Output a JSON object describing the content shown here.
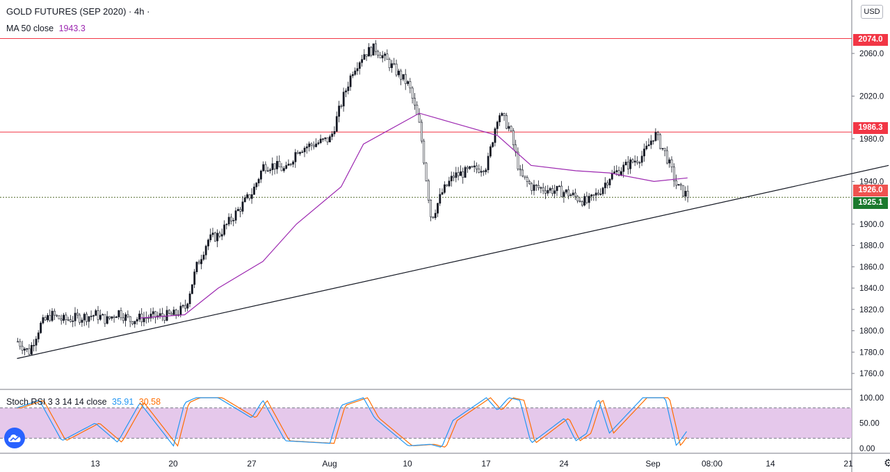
{
  "header": {
    "symbol": "GOLD FUTURES (SEP 2020)",
    "interval": "4h",
    "currency": "USD"
  },
  "ma": {
    "label": "MA 50 close",
    "value": "1943.3",
    "color": "#9c27b0"
  },
  "stoch": {
    "label": "Stoch RSI 3 3 14 14 close",
    "k": "35.91",
    "d": "30.58",
    "k_color": "#2196f3",
    "d_color": "#ff6d00"
  },
  "price_tags": {
    "resistance_high": {
      "text": "2074.0",
      "color": "#f23645"
    },
    "resistance_mid": {
      "text": "1986.3",
      "color": "#f23645"
    },
    "last_close": {
      "text": "1926.0",
      "color": "#ef5350"
    },
    "support": {
      "text": "1925.1",
      "color": "#1b7a2e"
    }
  },
  "chart_data": {
    "type": "candlestick",
    "price_axis_ticks": [
      "2060.0",
      "2020.0",
      "1980.0",
      "1940.0",
      "1900.0",
      "1880.0",
      "1860.0",
      "1840.0",
      "1820.0",
      "1800.0",
      "1780.0",
      "1760.0"
    ],
    "time_axis_ticks": [
      "13",
      "20",
      "27",
      "Aug",
      "10",
      "17",
      "24",
      "Sep",
      "08:00",
      "14",
      "21"
    ],
    "rsi_axis_ticks": [
      "100.00",
      "50.00",
      "0.00"
    ],
    "ylim": [
      1745,
      2090
    ],
    "rsi_ylim": [
      -5,
      110
    ],
    "rsi_band": [
      20,
      80
    ],
    "horizontal_levels": [
      {
        "name": "resistance-2074",
        "value": 2074.0,
        "color": "#f23645"
      },
      {
        "name": "resistance-1986",
        "value": 1986.3,
        "color": "#f23645"
      },
      {
        "name": "support-1925",
        "value": 1925.1,
        "color": "#556b2f",
        "dotted": true
      }
    ],
    "trendline": {
      "from": {
        "date": "Jul 6",
        "value": 1774
      },
      "to": {
        "date": "Sep 22",
        "value": 1955
      }
    },
    "price_anchors": [
      [
        "Jul 6",
        1790
      ],
      [
        "Jul 7",
        1780
      ],
      [
        "Jul 8",
        1805
      ],
      [
        "Jul 9",
        1815
      ],
      [
        "Jul 10",
        1810
      ],
      [
        "Jul 13",
        1815
      ],
      [
        "Jul 14",
        1810
      ],
      [
        "Jul 15",
        1818
      ],
      [
        "Jul 16",
        1810
      ],
      [
        "Jul 17",
        1812
      ],
      [
        "Jul 20",
        1815
      ],
      [
        "Jul 21",
        1822
      ],
      [
        "Jul 22",
        1860
      ],
      [
        "Jul 23",
        1885
      ],
      [
        "Jul 24",
        1890
      ],
      [
        "Jul 27",
        1930
      ],
      [
        "Jul 28",
        1955
      ],
      [
        "Jul 29",
        1955
      ],
      [
        "Jul 30",
        1950
      ],
      [
        "Jul 31",
        1970
      ],
      [
        "Aug 3",
        1980
      ],
      [
        "Aug 4",
        2015
      ],
      [
        "Aug 5",
        2045
      ],
      [
        "Aug 6",
        2060
      ],
      [
        "Aug 7",
        2065
      ],
      [
        "Aug 10",
        2030
      ],
      [
        "Aug 11",
        1990
      ],
      [
        "Aug 12",
        1905
      ],
      [
        "Aug 13",
        1930
      ],
      [
        "Aug 14",
        1945
      ],
      [
        "Aug 17",
        1955
      ],
      [
        "Aug 18",
        2005
      ],
      [
        "Aug 19",
        1990
      ],
      [
        "Aug 20",
        1945
      ],
      [
        "Aug 21",
        1935
      ],
      [
        "Aug 24",
        1930
      ],
      [
        "Aug 25",
        1925
      ],
      [
        "Aug 26",
        1920
      ],
      [
        "Aug 27",
        1930
      ],
      [
        "Aug 28",
        1945
      ],
      [
        "Aug 31",
        1965
      ],
      [
        "Sep 1",
        1985
      ],
      [
        "Sep 2",
        1965
      ],
      [
        "Sep 3",
        1935
      ],
      [
        "Sep 4",
        1926
      ]
    ],
    "ma50_anchors": [
      [
        "Jul 17",
        1812
      ],
      [
        "Jul 21",
        1815
      ],
      [
        "Jul 24",
        1840
      ],
      [
        "Jul 28",
        1865
      ],
      [
        "Jul 31",
        1900
      ],
      [
        "Aug 4",
        1935
      ],
      [
        "Aug 6",
        1975
      ],
      [
        "Aug 11",
        2004
      ],
      [
        "Aug 14",
        1995
      ],
      [
        "Aug 18",
        1983
      ],
      [
        "Aug 21",
        1955
      ],
      [
        "Aug 25",
        1950
      ],
      [
        "Aug 28",
        1948
      ],
      [
        "Sep 1",
        1940
      ],
      [
        "Sep 4",
        1943.3
      ]
    ],
    "stoch_anchors": [
      [
        "Jul 6",
        80
      ],
      [
        "Jul 8",
        95
      ],
      [
        "Jul 10",
        15
      ],
      [
        "Jul 13",
        50
      ],
      [
        "Jul 15",
        12
      ],
      [
        "Jul 17",
        90
      ],
      [
        "Jul 20",
        5
      ],
      [
        "Jul 21",
        90
      ],
      [
        "Jul 22",
        100
      ],
      [
        "Jul 24",
        100
      ],
      [
        "Jul 27",
        60
      ],
      [
        "Jul 28",
        95
      ],
      [
        "Jul 30",
        15
      ],
      [
        "Aug 3",
        10
      ],
      [
        "Aug 4",
        85
      ],
      [
        "Aug 6",
        100
      ],
      [
        "Aug 7",
        60
      ],
      [
        "Aug 10",
        5
      ],
      [
        "Aug 12",
        8
      ],
      [
        "Aug 13",
        2
      ],
      [
        "Aug 14",
        55
      ],
      [
        "Aug 17",
        100
      ],
      [
        "Aug 18",
        75
      ],
      [
        "Aug 19",
        100
      ],
      [
        "Aug 20",
        95
      ],
      [
        "Aug 21",
        10
      ],
      [
        "Aug 24",
        60
      ],
      [
        "Aug 25",
        15
      ],
      [
        "Aug 26",
        30
      ],
      [
        "Aug 27",
        100
      ],
      [
        "Aug 28",
        30
      ],
      [
        "Aug 31",
        100
      ],
      [
        "Sep 2",
        100
      ],
      [
        "Sep 3",
        5
      ],
      [
        "Sep 4",
        35.91
      ]
    ]
  }
}
